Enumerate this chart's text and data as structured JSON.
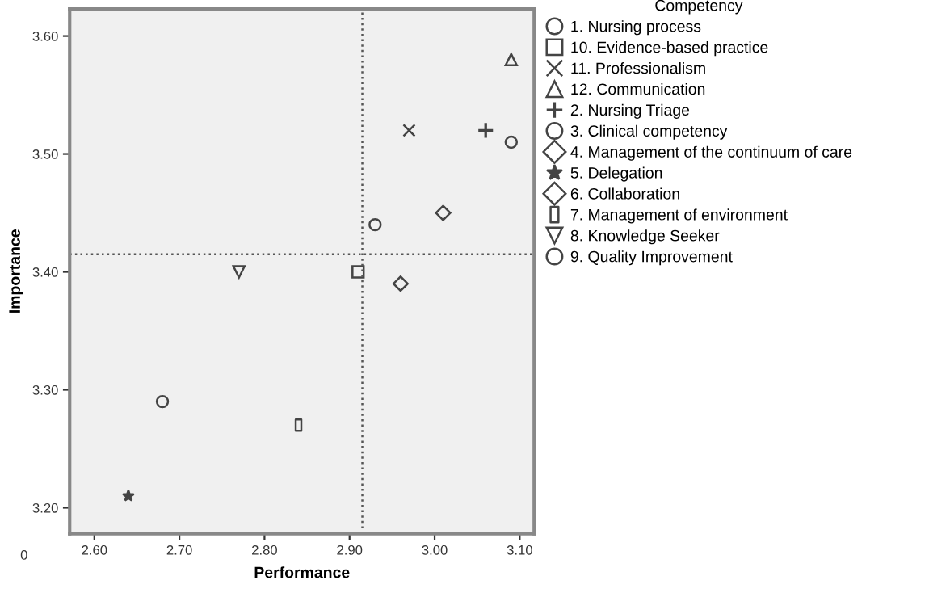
{
  "chart_data": {
    "type": "scatter",
    "xlabel": "Performance",
    "ylabel": "Importance",
    "legend_title": "Competency",
    "legend": "right",
    "grid": false,
    "xlim": [
      2.571,
      3.117
    ],
    "xticks": [
      {
        "value": 2.6,
        "label": "2.60"
      },
      {
        "value": 2.7,
        "label": "2.70"
      },
      {
        "value": 2.8,
        "label": "2.80"
      },
      {
        "value": 2.9,
        "label": "2.90"
      },
      {
        "value": 3.0,
        "label": "3.00"
      },
      {
        "value": 3.1,
        "label": "3.10"
      }
    ],
    "ylim": [
      3.178,
      3.623
    ],
    "yticks": [
      {
        "value": 3.2,
        "label": "3.20"
      },
      {
        "value": 3.3,
        "label": "3.30"
      },
      {
        "value": 3.4,
        "label": "3.40"
      },
      {
        "value": 3.5,
        "label": "3.50"
      },
      {
        "value": 3.6,
        "label": "3.60"
      }
    ],
    "ref_lines": [
      {
        "axis": "x",
        "value": 2.915,
        "line_style": "dotted",
        "color": "#555555"
      },
      {
        "axis": "y",
        "value": 3.415,
        "line_style": "dotted",
        "color": "#555555"
      }
    ],
    "annotations": [
      "0"
    ],
    "series": [
      {
        "name": "1. Nursing process",
        "marker": "circle",
        "color": "#444444",
        "x": [
          3.09
        ],
        "values": [
          3.51
        ]
      },
      {
        "name": "10. Evidence-based practice",
        "marker": "square",
        "color": "#444444",
        "x": [
          2.91
        ],
        "values": [
          3.4
        ]
      },
      {
        "name": "11. Professionalism",
        "marker": "cross",
        "color": "#444444",
        "x": [
          2.97
        ],
        "values": [
          3.52
        ]
      },
      {
        "name": "12. Communication",
        "marker": "triangle",
        "color": "#444444",
        "x": [
          3.09
        ],
        "values": [
          3.58
        ]
      },
      {
        "name": "2. Nursing Triage",
        "marker": "plus",
        "color": "#444444",
        "x": [
          3.06
        ],
        "values": [
          3.52
        ]
      },
      {
        "name": "3. Clinical competency",
        "marker": "circle",
        "color": "#444444",
        "x": [
          2.93
        ],
        "values": [
          3.44
        ]
      },
      {
        "name": "4. Management of the continuum of care",
        "marker": "diamond",
        "color": "#444444",
        "x": [
          2.96
        ],
        "values": [
          3.39
        ]
      },
      {
        "name": "5. Delegation",
        "marker": "star",
        "color": "#444444",
        "x": [
          2.64
        ],
        "values": [
          3.21
        ]
      },
      {
        "name": "6. Collaboration",
        "marker": "diamond",
        "color": "#444444",
        "x": [
          3.01
        ],
        "values": [
          3.45
        ]
      },
      {
        "name": "7. Management of environment",
        "marker": "rect_v",
        "color": "#444444",
        "x": [
          2.84
        ],
        "values": [
          3.27
        ]
      },
      {
        "name": "8. Knowledge Seeker",
        "marker": "triangle_down",
        "color": "#444444",
        "x": [
          2.77
        ],
        "values": [
          3.4
        ]
      },
      {
        "name": "9. Quality Improvement",
        "marker": "circle",
        "color": "#444444",
        "x": [
          2.68
        ],
        "values": [
          3.29
        ]
      }
    ]
  }
}
